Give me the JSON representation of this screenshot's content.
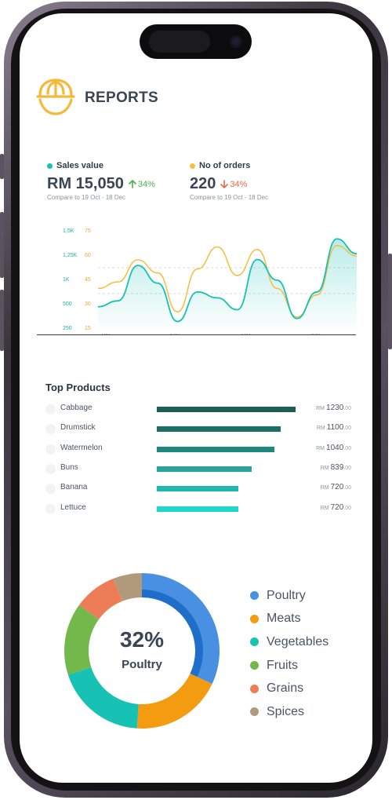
{
  "header": {
    "title": "REPORTS",
    "logo_icon": "food-dome-icon"
  },
  "kpis": {
    "sales": {
      "label": "Sales value",
      "value": "RM 15,050",
      "change": "34%",
      "direction": "up",
      "compare": "Compare to 19 Oct - 18 Dec",
      "color": "#17c1b4"
    },
    "orders": {
      "label": "No of orders",
      "value": "220",
      "change": "34%",
      "direction": "down",
      "compare": "Compare to 19 Oct - 18 Dec",
      "color": "#f5c04a"
    }
  },
  "colors": {
    "up": "#4caf50",
    "down": "#e8694a",
    "teal": "#17c1b4",
    "yellow": "#f5c04a"
  },
  "chart_data": {
    "type": "line",
    "x_labels": [
      "4/21",
      "5/21",
      "6/21",
      "7/21"
    ],
    "y_left_ticks": [
      "1,5K",
      "1,25K",
      "1K",
      "500",
      "250"
    ],
    "y_right_ticks": [
      "75",
      "60",
      "45",
      "30",
      "15"
    ],
    "series": [
      {
        "name": "Sales value",
        "color": "#17c1b4",
        "fill": true,
        "values": [
          450,
          550,
          1150,
          850,
          200,
          700,
          600,
          400,
          1250,
          900,
          250,
          700,
          1600,
          1350
        ]
      },
      {
        "name": "No of orders",
        "color": "#f5c04a",
        "fill": false,
        "values": [
          30,
          35,
          52,
          42,
          12,
          45,
          62,
          40,
          60,
          30,
          8,
          25,
          63,
          55
        ]
      }
    ]
  },
  "top_products": {
    "title": "Top Products",
    "currency": "RM",
    "decimals": ".00",
    "items": [
      {
        "name": "Cabbage",
        "amount": "1230",
        "value": 1230,
        "color": "#1b5f58"
      },
      {
        "name": "Drumstick",
        "amount": "1100",
        "value": 1100,
        "color": "#1c6e66"
      },
      {
        "name": "Watermelon",
        "amount": "1040",
        "value": 1040,
        "color": "#1e887f"
      },
      {
        "name": "Buns",
        "amount": "839",
        "value": 839,
        "color": "#26a49a"
      },
      {
        "name": "Banana",
        "amount": "720",
        "value": 720,
        "color": "#1fb8ac"
      },
      {
        "name": "Lettuce",
        "amount": "720",
        "value": 720,
        "color": "#1ed8d0"
      }
    ]
  },
  "donut": {
    "percent_label": "32%",
    "category_label": "Poultry",
    "segments": [
      {
        "name": "Poultry",
        "value": 32,
        "color": "#4a90e2"
      },
      {
        "name": "Meats",
        "value": 19,
        "color": "#f39c12"
      },
      {
        "name": "Vegetables",
        "value": 19,
        "color": "#17c1b4"
      },
      {
        "name": "Fruits",
        "value": 15,
        "color": "#72b84a"
      },
      {
        "name": "Grains",
        "value": 9,
        "color": "#ec7d56"
      },
      {
        "name": "Spices",
        "value": 6,
        "color": "#b09a7c"
      }
    ]
  }
}
